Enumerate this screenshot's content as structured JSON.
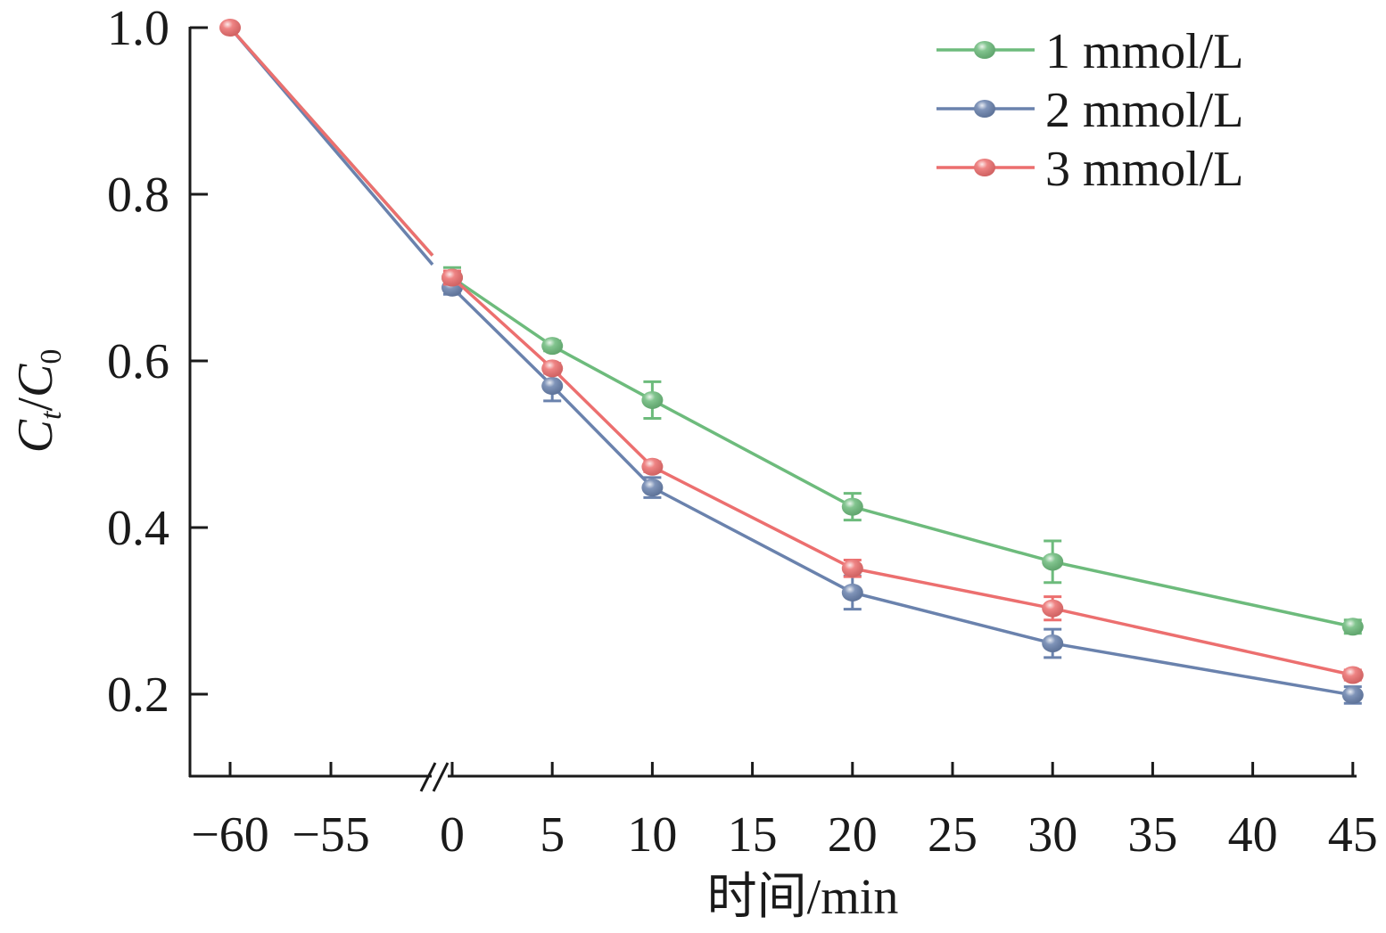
{
  "chart_data": {
    "type": "line",
    "title": "",
    "xlabel": "时间/min",
    "ylabel_main": "C",
    "ylabel_sub1": "t",
    "ylabel_sep": "/",
    "ylabel_sub2": "0",
    "ylabel": "Ct/C0",
    "x_axis_broken": true,
    "x_break_between": [
      -55,
      0
    ],
    "xticks": [
      -60,
      -55,
      0,
      5,
      10,
      15,
      20,
      25,
      30,
      35,
      40,
      45
    ],
    "xtick_labels": [
      "−60",
      "−55",
      "0",
      "5",
      "10",
      "15",
      "20",
      "25",
      "30",
      "35",
      "40",
      "45"
    ],
    "yticks": [
      0.2,
      0.4,
      0.6,
      0.8,
      1.0
    ],
    "ytick_labels": [
      "0.2",
      "0.4",
      "0.6",
      "0.8",
      "1.0"
    ],
    "ylim": [
      0.1,
      1.0
    ],
    "grid": false,
    "legend_position": "top-right",
    "x": [
      -60,
      0,
      5,
      10,
      20,
      30,
      45
    ],
    "series": [
      {
        "name": "1 mmol/L",
        "color": "#6dbb7c",
        "values": [
          1.0,
          0.7,
          0.618,
          0.553,
          0.425,
          0.359,
          0.281
        ],
        "errors": [
          0,
          0.012,
          0.006,
          0.022,
          0.016,
          0.025,
          0.008
        ]
      },
      {
        "name": "2 mmol/L",
        "color": "#6a82ad",
        "values": [
          1.0,
          0.688,
          0.57,
          0.448,
          0.322,
          0.261,
          0.199
        ],
        "errors": [
          0,
          0.008,
          0.018,
          0.012,
          0.02,
          0.017,
          0.01
        ]
      },
      {
        "name": "3 mmol/L",
        "color": "#ec6f6f",
        "values": [
          1.0,
          0.7,
          0.591,
          0.473,
          0.351,
          0.303,
          0.223
        ],
        "errors": [
          0,
          0.008,
          0.006,
          0.006,
          0.01,
          0.014,
          0.006
        ]
      }
    ]
  }
}
